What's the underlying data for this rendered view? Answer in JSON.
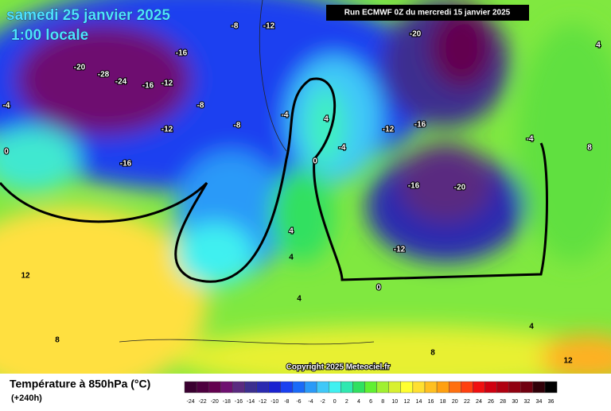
{
  "header": {
    "date": "samedi 25 janvier 2025",
    "time": "1:00 locale",
    "run": "Run ECMWF 0Z du mercredi 15 janvier 2025",
    "copyright": "Copyright 2025 Meteociel.fr"
  },
  "legend": {
    "title": "Température à 850hPa (°C)",
    "lead": "(+240h)",
    "items": [
      {
        "value": -24,
        "color": "#3a0030"
      },
      {
        "value": -22,
        "color": "#4d003f"
      },
      {
        "value": -20,
        "color": "#63004f"
      },
      {
        "value": -18,
        "color": "#6e1070"
      },
      {
        "value": -16,
        "color": "#5a2a80"
      },
      {
        "value": -14,
        "color": "#3c2f8f"
      },
      {
        "value": -12,
        "color": "#2a2ab0"
      },
      {
        "value": -10,
        "color": "#1a22d0"
      },
      {
        "value": -8,
        "color": "#1a40f0"
      },
      {
        "value": -6,
        "color": "#1a6af8"
      },
      {
        "value": -4,
        "color": "#2a9af8"
      },
      {
        "value": -2,
        "color": "#40c8f8"
      },
      {
        "value": 0,
        "color": "#40f0f0"
      },
      {
        "value": 2,
        "color": "#30e8b0"
      },
      {
        "value": 4,
        "color": "#30e060"
      },
      {
        "value": 6,
        "color": "#60f030"
      },
      {
        "value": 8,
        "color": "#a0f030"
      },
      {
        "value": 10,
        "color": "#d8f030"
      },
      {
        "value": 12,
        "color": "#ffff30"
      },
      {
        "value": 14,
        "color": "#ffe030"
      },
      {
        "value": 16,
        "color": "#ffc020"
      },
      {
        "value": 18,
        "color": "#ffa010"
      },
      {
        "value": 20,
        "color": "#ff7010"
      },
      {
        "value": 22,
        "color": "#ff4010"
      },
      {
        "value": 24,
        "color": "#f01010"
      },
      {
        "value": 26,
        "color": "#d00010"
      },
      {
        "value": 28,
        "color": "#b00010"
      },
      {
        "value": 30,
        "color": "#900010"
      },
      {
        "value": 32,
        "color": "#700010"
      },
      {
        "value": 34,
        "color": "#300008"
      },
      {
        "value": 36,
        "color": "#000000"
      }
    ]
  },
  "map": {
    "labels": [
      "-20",
      "-28",
      "-24",
      "-16",
      "-12",
      "-4",
      "0",
      "-16",
      "-12",
      "-8",
      "-16",
      "-8",
      "-12",
      "-8",
      "-4",
      "4",
      "-4",
      "0",
      "-12",
      "-16",
      "-16",
      "-20",
      "-12",
      "-20",
      "-4",
      "8",
      "4",
      "12",
      "8",
      "4",
      "4",
      "0",
      "8",
      "12",
      "4",
      "4"
    ]
  }
}
